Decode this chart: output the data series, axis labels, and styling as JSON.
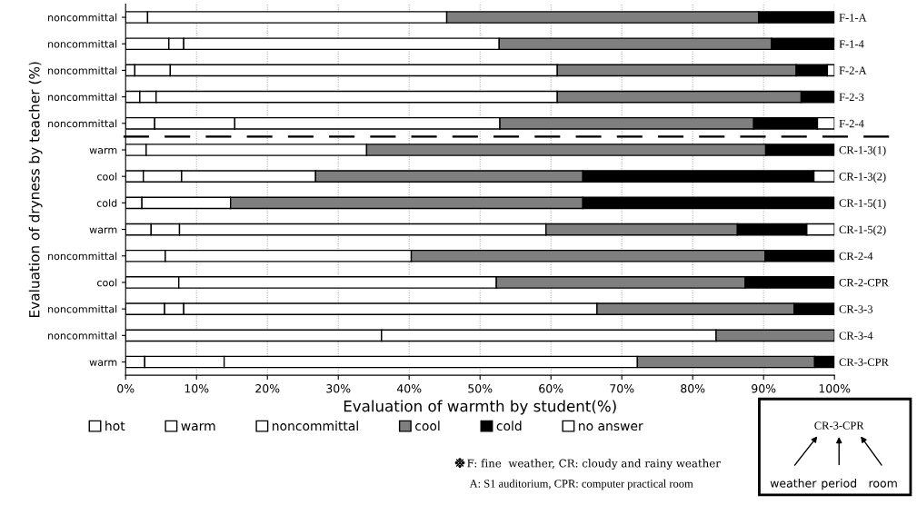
{
  "chart_data": {
    "type": "bar",
    "orientation": "horizontal",
    "stacked": true,
    "xlabel": "Evaluation of warmth by student(%)",
    "ylabel": "Evaluation of dryness by teacher (%)",
    "categories": [
      "noncommittal",
      "noncommittal",
      "noncommittal",
      "noncommittal",
      "noncommittal",
      "warm",
      "cool",
      "cold",
      "warm",
      "noncommittal",
      "cool",
      "noncommittal",
      "noncommittal",
      "warm"
    ],
    "y2_categories": [
      "F-1-A",
      "F-1-4",
      "F-2-A",
      "F-2-3",
      "F-2-4",
      "CR-1-3(1)",
      "CR-1-3(2)",
      "CR-1-5(1)",
      "CR-1-5(2)",
      "CR-2-4",
      "CR-2-CPR",
      "CR-3-3",
      "CR-3-4",
      "CR-3-CPR"
    ],
    "series": [
      {
        "name": "hot",
        "color": "#ffffff",
        "values": [
          3.1,
          6.1,
          1.3,
          2.0,
          4.1,
          2.9,
          2.5,
          2.3,
          3.6,
          5.6,
          7.5,
          5.5,
          36.1,
          2.7
        ]
      },
      {
        "name": "warm",
        "color": "#ffffff",
        "values": [
          42.2,
          2.1,
          5.0,
          2.3,
          11.3,
          31.1,
          5.4,
          12.5,
          4.0,
          34.7,
          44.8,
          2.7,
          47.2,
          11.2
        ]
      },
      {
        "name": "noncommittal",
        "color": "#ffffff",
        "values": [
          null,
          44.5,
          54.6,
          56.6,
          37.4,
          null,
          18.9,
          null,
          51.7,
          null,
          null,
          58.3,
          null,
          58.3
        ]
      },
      {
        "name": "cool",
        "color": "#7f7f7f",
        "values": [
          44.0,
          38.4,
          33.7,
          34.4,
          35.8,
          56.3,
          37.7,
          49.7,
          27.0,
          49.9,
          35.1,
          27.8,
          16.7,
          25.0
        ]
      },
      {
        "name": "cold",
        "color": "#000000",
        "values": [
          10.7,
          8.9,
          4.4,
          4.7,
          9.0,
          9.7,
          32.6,
          35.5,
          9.8,
          9.8,
          12.6,
          5.7,
          null,
          2.8
        ]
      },
      {
        "name": "no answer",
        "color": "#ffffff",
        "values": [
          null,
          null,
          1.0,
          null,
          2.4,
          null,
          2.9,
          null,
          3.9,
          null,
          null,
          null,
          null,
          null
        ]
      }
    ],
    "xlim": [
      0,
      100
    ],
    "xticks": [
      {
        "value": 0,
        "label": "0%"
      },
      {
        "value": 10,
        "label": "10%"
      },
      {
        "value": 20,
        "label": "20%"
      },
      {
        "value": 30,
        "label": "30%"
      },
      {
        "value": 40,
        "label": "40%"
      },
      {
        "value": 50,
        "label": "50%"
      },
      {
        "value": 60,
        "label": "60%"
      },
      {
        "value": 70,
        "label": "70%"
      },
      {
        "value": 80,
        "label": "80%"
      },
      {
        "value": 90,
        "label": "90%"
      },
      {
        "value": 100,
        "label": "100%"
      }
    ],
    "grid": "x",
    "legend": "bottom",
    "annotations": [
      "F: fine  weather, CR: cloudy and rainy weather",
      "A: S1 auditorium, CPR: computer practical room",
      "CR-3-CPR",
      "weather",
      "period",
      "room"
    ]
  }
}
